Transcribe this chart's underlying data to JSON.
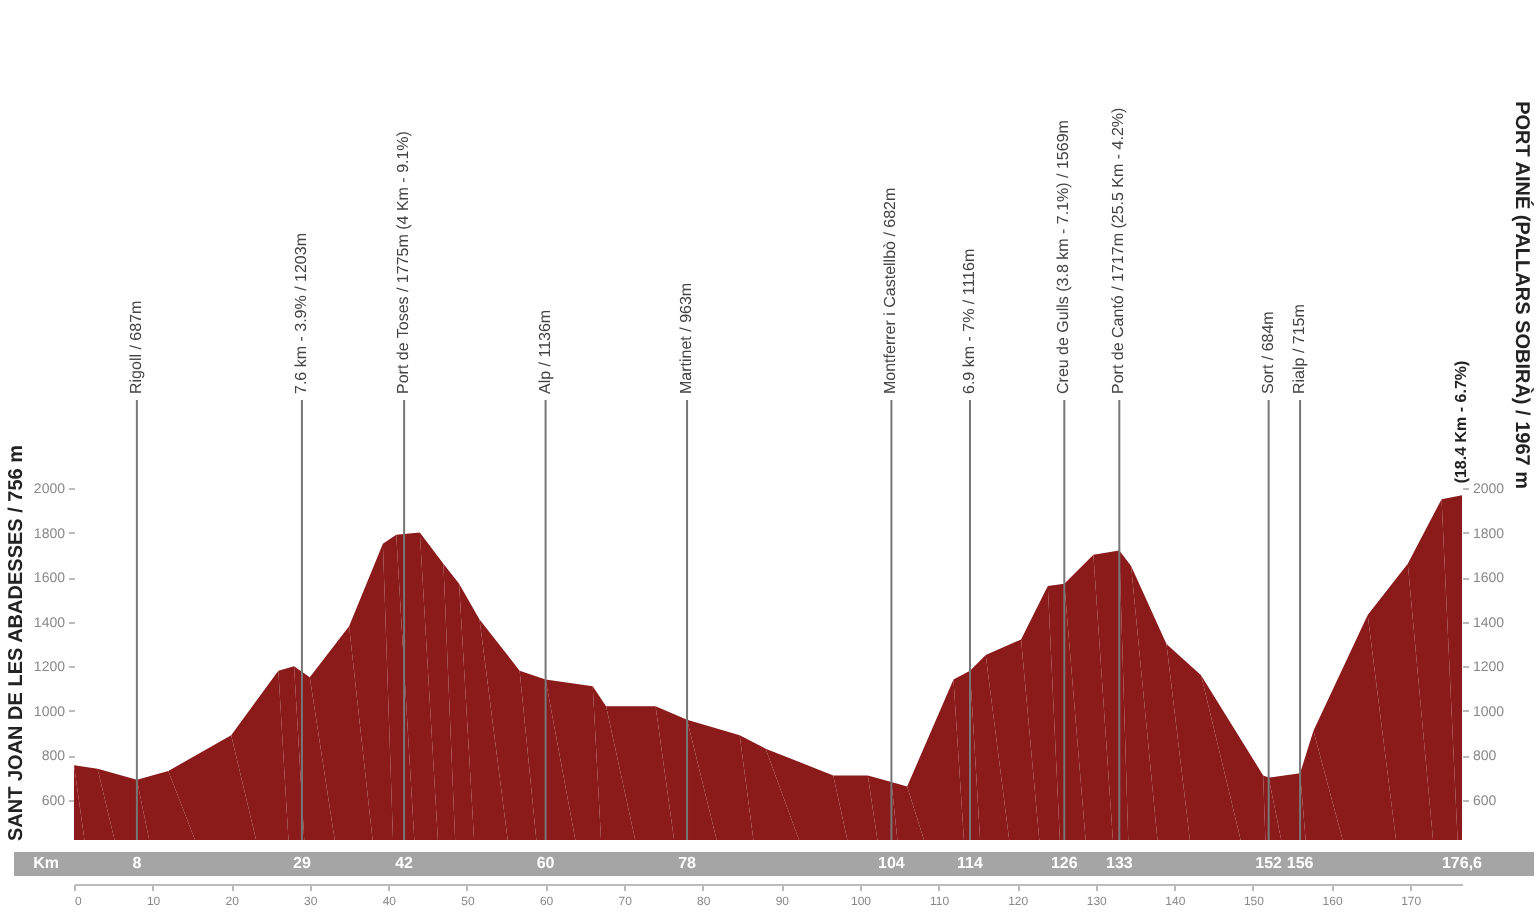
{
  "chart_data": {
    "type": "area",
    "ylabel": "SANT JOAN DE LES ABADESSES / 756 m",
    "y2label": "PORT AINÉ (PALLARS SOBIRÀ) / 1967 m",
    "x": [
      0,
      3,
      8,
      12,
      20,
      26,
      28,
      30,
      35,
      39.3,
      41,
      44,
      47,
      49,
      51.6,
      56.7,
      60,
      66,
      67.7,
      74,
      78,
      84.7,
      88,
      96.6,
      101,
      104,
      106,
      111.9,
      114,
      116,
      120.5,
      123.9,
      126,
      129.7,
      133,
      134.5,
      139,
      143.4,
      151.3,
      152,
      156,
      157.7,
      164.6,
      169.7,
      174,
      176.6
    ],
    "series": [
      {
        "color": "#8b1a1a",
        "values": [
          756,
          740,
          690,
          730,
          890,
          1180,
          1200,
          1150,
          1380,
          1750,
          1790,
          1800,
          1660,
          1570,
          1410,
          1180,
          1140,
          1110,
          1020,
          1020,
          960,
          890,
          830,
          710,
          710,
          680,
          660,
          1140,
          1180,
          1250,
          1320,
          1560,
          1570,
          1700,
          1720,
          1650,
          1300,
          1160,
          710,
          700,
          720,
          910,
          1430,
          1660,
          1950,
          1967
        ]
      }
    ],
    "xlim": [
      0,
      176.6
    ],
    "xticks": [
      0,
      10,
      20,
      30,
      40,
      50,
      60,
      70,
      80,
      90,
      100,
      110,
      120,
      130,
      140,
      150,
      160,
      170
    ],
    "ylim": [
      420,
      2000
    ],
    "yticks": [
      600,
      800,
      1000,
      1200,
      1400,
      1600,
      1800,
      2000
    ],
    "y2lim": [
      420,
      2000
    ],
    "y2ticks": [
      600,
      800,
      1000,
      1200,
      1400,
      1600,
      1800,
      2000
    ],
    "x2lim": [
      0,
      176.6
    ],
    "x2ticks": [
      8,
      29,
      42,
      60,
      78,
      104,
      114,
      126,
      133,
      152,
      156,
      {
        "value": 176.6,
        "label": "176,6"
      }
    ],
    "ref_lines": [
      {
        "axis": "x",
        "value": 8,
        "label": "Rigoll / 687m"
      },
      {
        "axis": "x",
        "value": 29,
        "label": "7.6 km - 3.9% / 1203m"
      },
      {
        "axis": "x",
        "value": 42,
        "label": "Port de Toses / 1775m (4 Km - 9.1%)"
      },
      {
        "axis": "x",
        "value": 60,
        "label": "Alp / 1136m"
      },
      {
        "axis": "x",
        "value": 78,
        "label": "Martinet / 963m"
      },
      {
        "axis": "x",
        "value": 104,
        "label": "Montferrer i Castellbò / 682m"
      },
      {
        "axis": "x",
        "value": 114,
        "label": "6.9 km - 7% / 1116m"
      },
      {
        "axis": "x",
        "value": 126,
        "label": "Creu de Gulls (3.8 km - 7.1%) / 1569m"
      },
      {
        "axis": "x",
        "value": 133,
        "label": "Port de Cantó / 1717m (25.5 Km - 4.2%)"
      },
      {
        "axis": "x",
        "value": 152,
        "label": "Sort / 684m"
      },
      {
        "axis": "x",
        "value": 156,
        "label": "Rialp / 715m"
      }
    ],
    "annotations": [
      "Km",
      {
        "text": "(18.4 Km - 6.7%)",
        "x": 176.6,
        "y": 1967
      }
    ],
    "grid": false
  }
}
